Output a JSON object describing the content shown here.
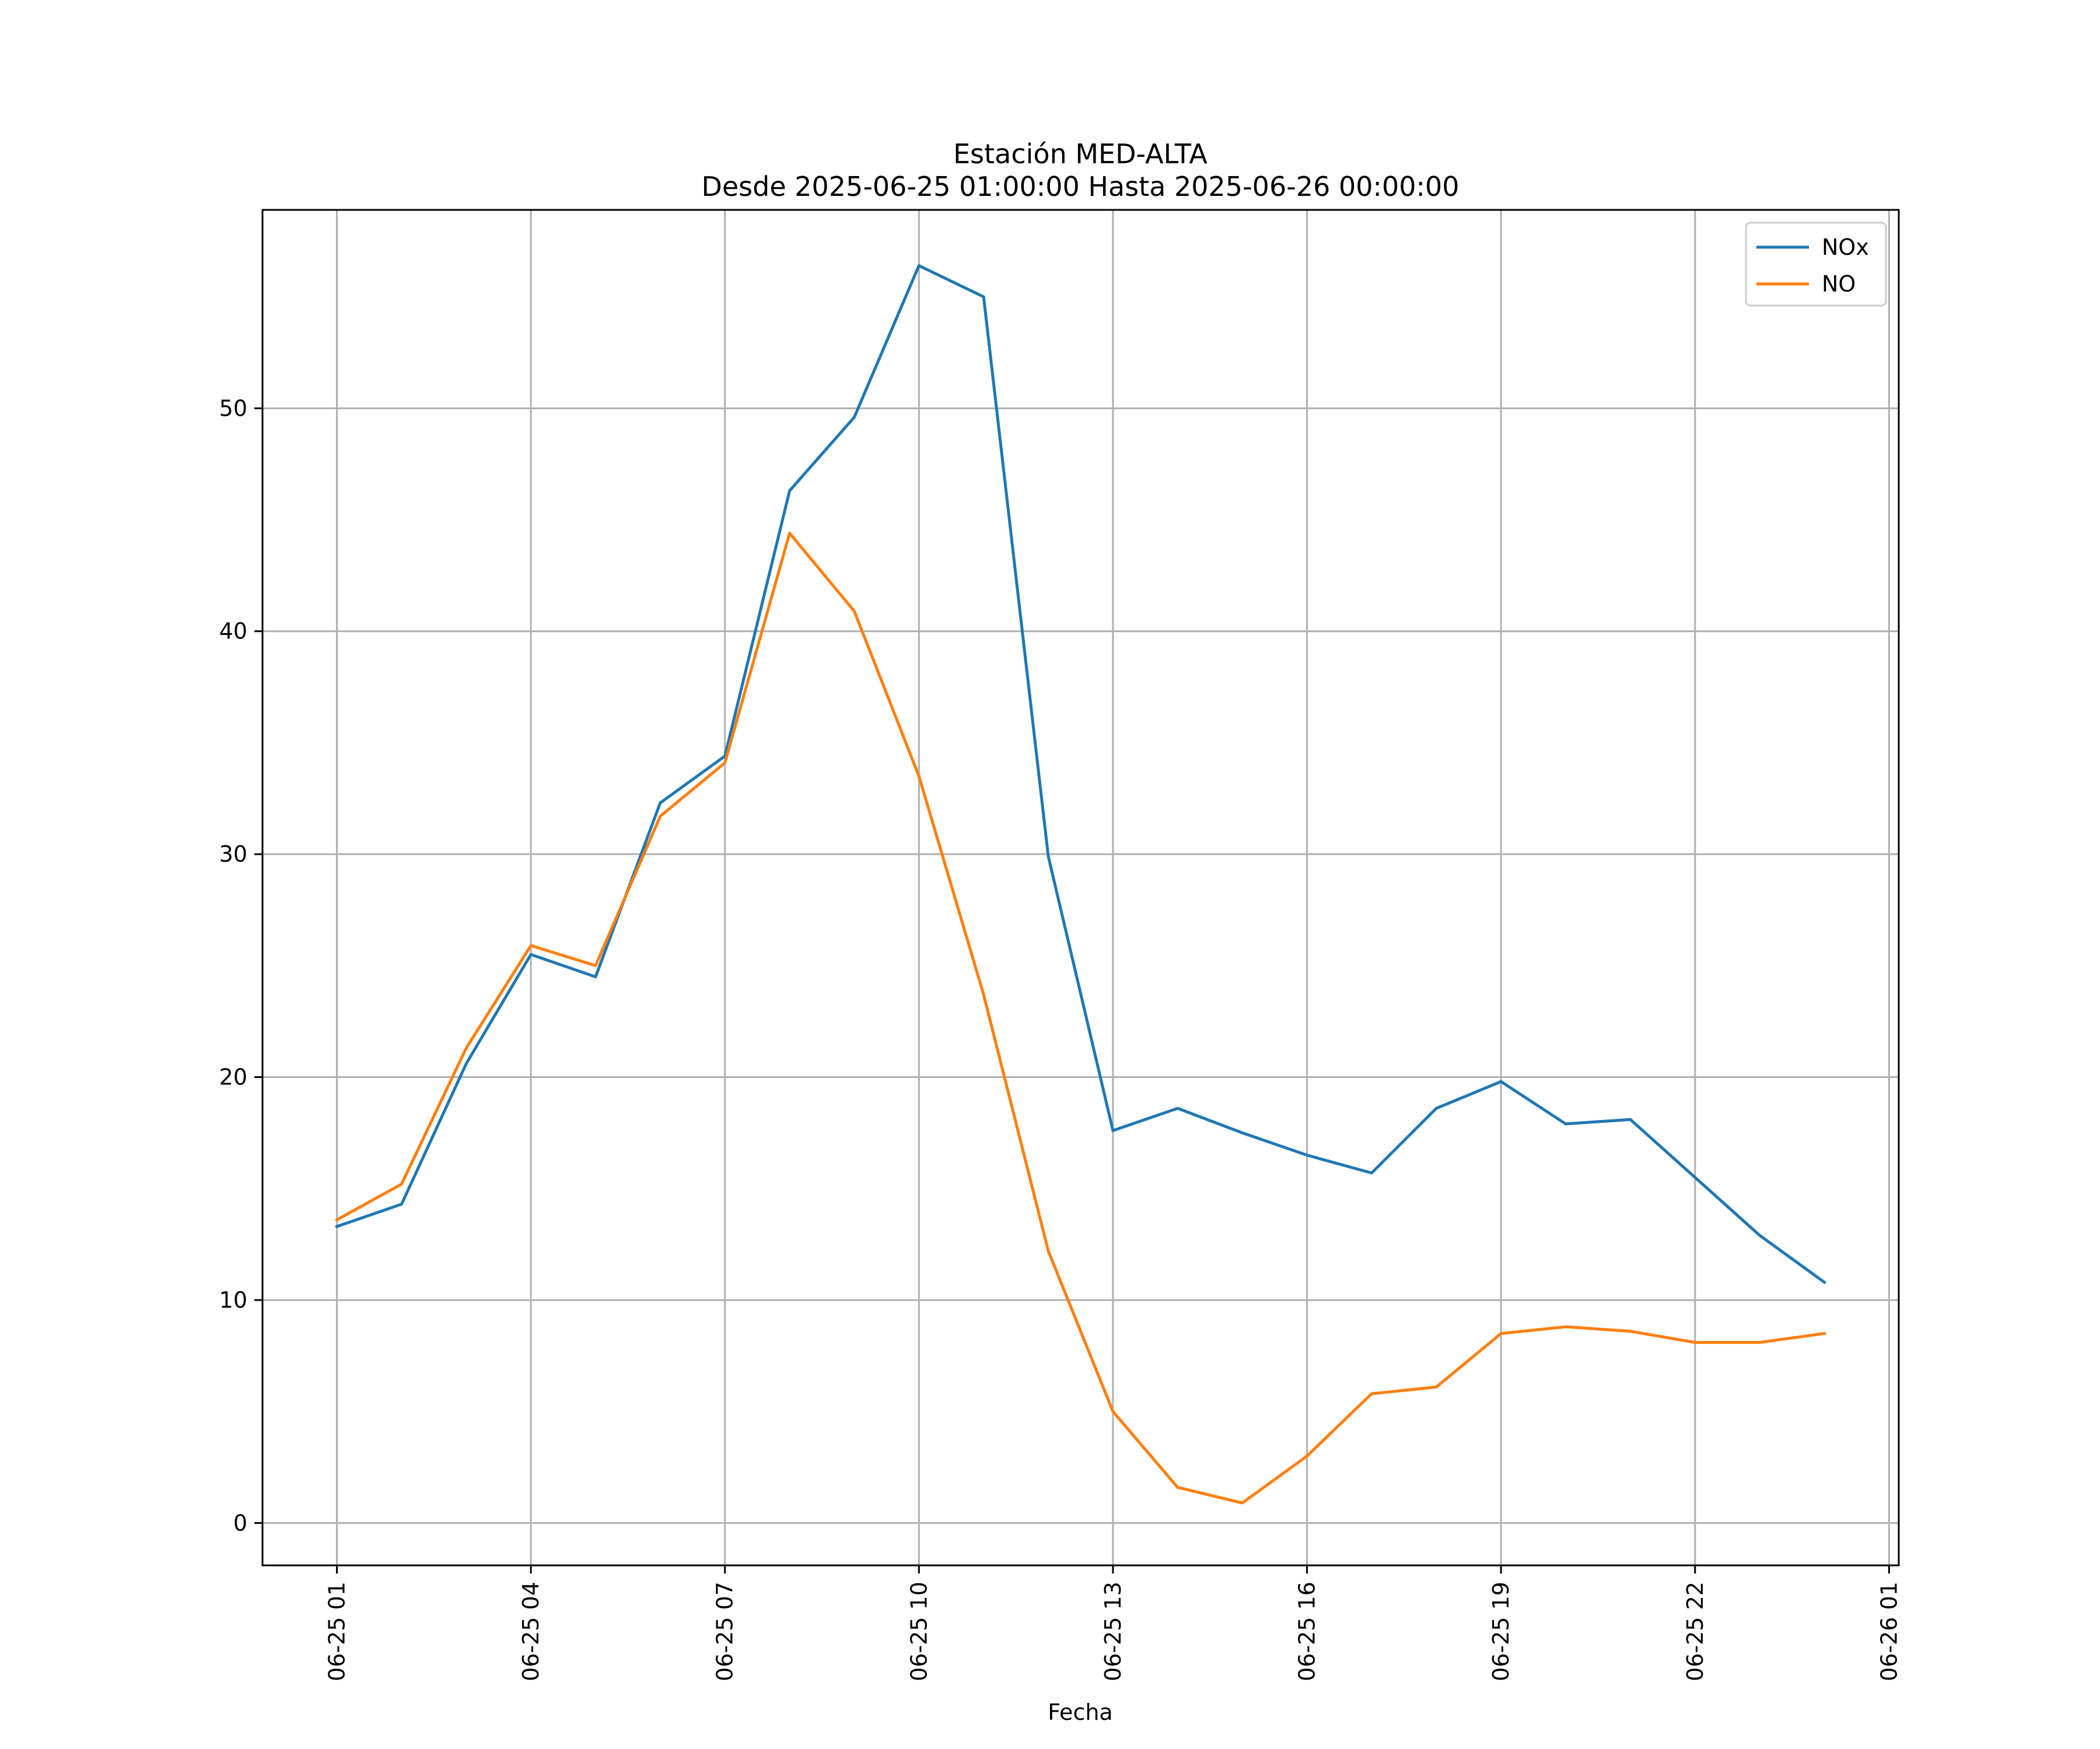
{
  "chart_data": {
    "type": "line",
    "title": "Estación MED-ALTA",
    "subtitle": "Desde 2025-06-25 01:00:00 Hasta 2025-06-26 00:00:00",
    "xlabel": "Fecha",
    "ylabel": "",
    "x": [
      "2025-06-25 01:00",
      "2025-06-25 02:00",
      "2025-06-25 03:00",
      "2025-06-25 04:00",
      "2025-06-25 05:00",
      "2025-06-25 06:00",
      "2025-06-25 07:00",
      "2025-06-25 08:00",
      "2025-06-25 09:00",
      "2025-06-25 10:00",
      "2025-06-25 11:00",
      "2025-06-25 12:00",
      "2025-06-25 13:00",
      "2025-06-25 14:00",
      "2025-06-25 15:00",
      "2025-06-25 16:00",
      "2025-06-25 17:00",
      "2025-06-25 18:00",
      "2025-06-25 19:00",
      "2025-06-25 20:00",
      "2025-06-25 21:00",
      "2025-06-25 22:00",
      "2025-06-25 23:00",
      "2025-06-26 00:00"
    ],
    "xlim": [
      "2025-06-24 23:51",
      "2025-06-26 01:09"
    ],
    "ylim": [
      -1.9,
      58.9
    ],
    "x_ticks": [
      {
        "value": "2025-06-25 01:00",
        "label": "06-25 01"
      },
      {
        "value": "2025-06-25 04:00",
        "label": "06-25 04"
      },
      {
        "value": "2025-06-25 07:00",
        "label": "06-25 07"
      },
      {
        "value": "2025-06-25 10:00",
        "label": "06-25 10"
      },
      {
        "value": "2025-06-25 13:00",
        "label": "06-25 13"
      },
      {
        "value": "2025-06-25 16:00",
        "label": "06-25 16"
      },
      {
        "value": "2025-06-25 19:00",
        "label": "06-25 19"
      },
      {
        "value": "2025-06-25 22:00",
        "label": "06-25 22"
      },
      {
        "value": "2025-06-26 01:00",
        "label": "06-26 01"
      }
    ],
    "y_ticks": [
      {
        "value": 0,
        "label": "0"
      },
      {
        "value": 10,
        "label": "10"
      },
      {
        "value": 20,
        "label": "20"
      },
      {
        "value": 30,
        "label": "30"
      },
      {
        "value": 40,
        "label": "40"
      },
      {
        "value": 50,
        "label": "50"
      }
    ],
    "grid": true,
    "legend": "top-right",
    "series": [
      {
        "name": "NOx",
        "color": "#1f77b4",
        "values": [
          13.3,
          14.3,
          20.6,
          25.5,
          24.5,
          32.3,
          34.4,
          46.3,
          49.6,
          56.4,
          55.0,
          29.9,
          17.6,
          18.6,
          17.5,
          16.5,
          15.7,
          18.6,
          19.8,
          17.9,
          18.1,
          15.5,
          12.9,
          10.8
        ]
      },
      {
        "name": "NO",
        "color": "#ff7f0e",
        "values": [
          13.6,
          15.2,
          21.3,
          25.9,
          25.0,
          31.7,
          34.1,
          44.4,
          40.9,
          33.5,
          23.7,
          12.2,
          5.0,
          1.6,
          0.9,
          3.0,
          5.8,
          6.1,
          8.5,
          8.8,
          8.6,
          8.1,
          8.1,
          8.5
        ]
      }
    ]
  }
}
